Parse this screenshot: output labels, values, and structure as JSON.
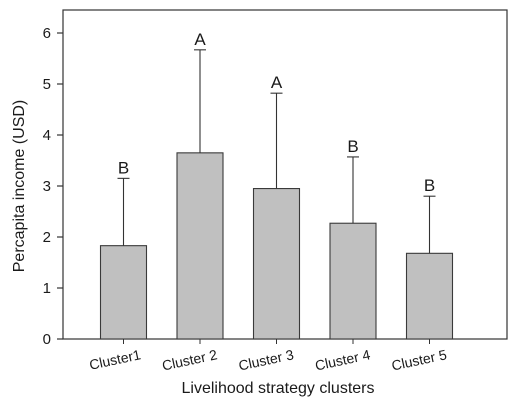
{
  "chart_data": {
    "type": "bar",
    "title": "",
    "xlabel": "Livelihood strategy clusters",
    "ylabel": "Percapita income (USD)",
    "ylim": [
      0,
      6.5
    ],
    "yticks": [
      0,
      1,
      2,
      3,
      4,
      5,
      6
    ],
    "categories": [
      "Cluster1",
      "Cluster 2",
      "Cluster 3",
      "Cluster 4",
      "Cluster 5"
    ],
    "series": [
      {
        "values": [
          1.83,
          3.65,
          2.95,
          2.27,
          1.68
        ],
        "error_upper": [
          1.32,
          2.02,
          1.87,
          1.3,
          1.12
        ],
        "significance_labels": [
          "B",
          "A",
          "A",
          "B",
          "B"
        ]
      }
    ],
    "bar_color": "#c0c0c0",
    "bar_edge_color": "#3a3a3a",
    "grid": false,
    "legend": "none"
  }
}
